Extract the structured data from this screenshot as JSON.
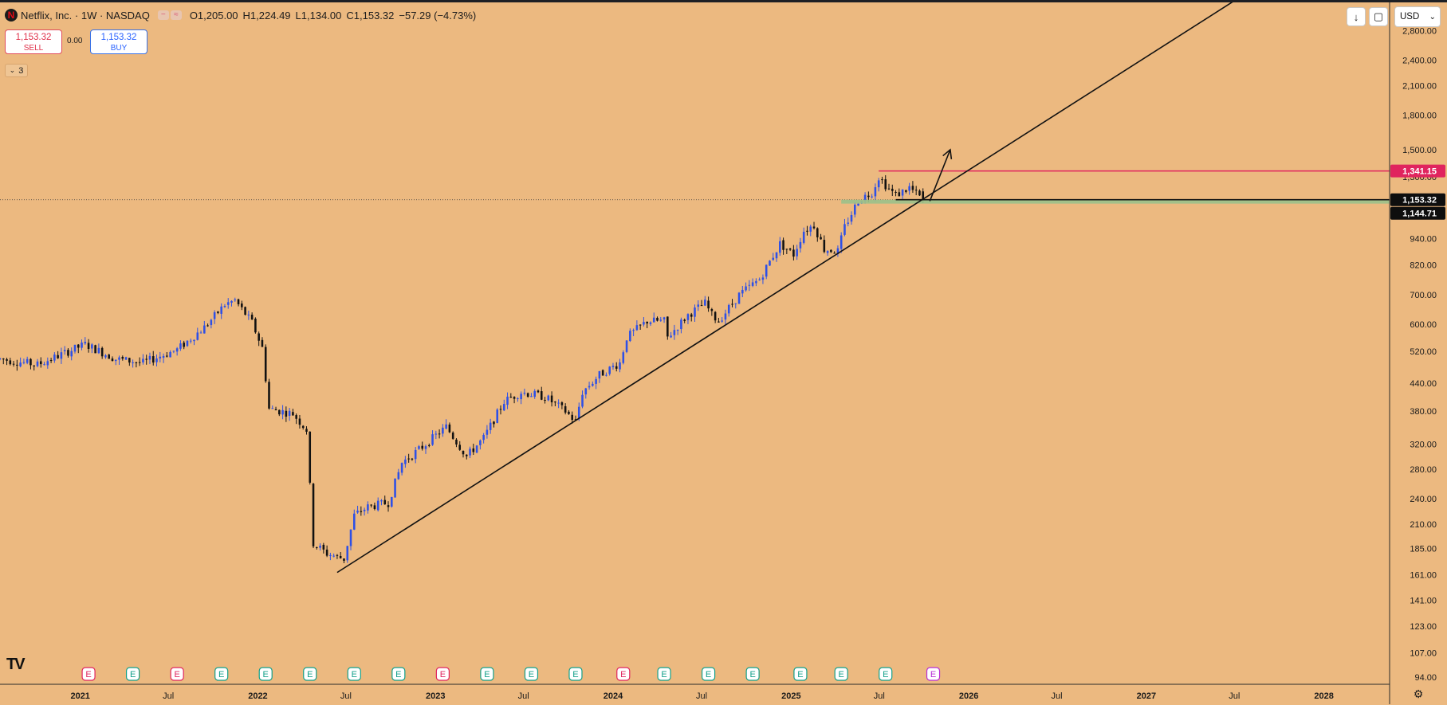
{
  "header": {
    "logo_letter": "N",
    "symbol": "Netflix, Inc. · 1W · NASDAQ",
    "badge_icons": [
      "−",
      "≈"
    ],
    "open": "O1,205.00",
    "high": "H1,224.49",
    "low": "L1,134.00",
    "close": "C1,153.32",
    "change": "−57.29 (−4.73%)"
  },
  "trade": {
    "sell_price": "1,153.32",
    "sell_label": "SELL",
    "spread": "0.00",
    "buy_price": "1,153.32",
    "buy_label": "BUY"
  },
  "indicators_toggle": {
    "icon": "chevron-down-icon",
    "count": "3"
  },
  "toolbar": {
    "download_icon": "↓",
    "screenshot_icon": "▢"
  },
  "currency": {
    "value": "USD"
  },
  "brand": {
    "logo_text": "TV"
  },
  "colors": {
    "background": "#ecb980",
    "bull": "#2e50e6",
    "bear": "#111111",
    "resistance": "#e0245e",
    "support": "#9bc18a",
    "earnings": "#13a08a",
    "earnings_miss": "#e0245e",
    "earnings_next": "#b72cd6"
  },
  "chart_data": {
    "type": "candlestick",
    "symbol": "Netflix, Inc.",
    "interval": "1W",
    "scale": "log",
    "ylim": [
      91,
      3250
    ],
    "xlim": [
      "2020-07-20",
      "2028-05-15"
    ],
    "y_ticks": [
      94,
      107,
      123,
      141,
      161,
      185,
      210,
      240,
      280,
      320,
      380,
      440,
      520,
      600,
      700,
      820,
      940,
      1300,
      1500,
      1800,
      2100,
      2400,
      2800
    ],
    "y_tick_labels": [
      "94.00",
      "107.00",
      "123.00",
      "141.00",
      "161.00",
      "185.00",
      "210.00",
      "240.00",
      "280.00",
      "320.00",
      "380.00",
      "440.00",
      "520.00",
      "600.00",
      "700.00",
      "820.00",
      "940.00",
      "1,300.00",
      "1,500.00",
      "1,800.00",
      "2,100.00",
      "2,400.00",
      "2,800.00"
    ],
    "x_ticks": [
      {
        "date": "2021-01-01",
        "label": "2021",
        "major": true
      },
      {
        "date": "2021-07-01",
        "label": "Jul",
        "major": false
      },
      {
        "date": "2022-01-01",
        "label": "2022",
        "major": true
      },
      {
        "date": "2022-07-01",
        "label": "Jul",
        "major": false
      },
      {
        "date": "2023-01-01",
        "label": "2023",
        "major": true
      },
      {
        "date": "2023-07-01",
        "label": "Jul",
        "major": false
      },
      {
        "date": "2024-01-01",
        "label": "2024",
        "major": true
      },
      {
        "date": "2024-07-01",
        "label": "Jul",
        "major": false
      },
      {
        "date": "2025-01-01",
        "label": "2025",
        "major": true
      },
      {
        "date": "2025-07-01",
        "label": "Jul",
        "major": false
      },
      {
        "date": "2026-01-01",
        "label": "2026",
        "major": true
      },
      {
        "date": "2026-07-01",
        "label": "Jul",
        "major": false
      },
      {
        "date": "2027-01-01",
        "label": "2027",
        "major": true
      },
      {
        "date": "2027-07-01",
        "label": "Jul",
        "major": false
      },
      {
        "date": "2028-01-01",
        "label": "2028",
        "major": true
      }
    ],
    "anchors": [
      [
        "2020-07-20",
        500
      ],
      [
        "2020-10-05",
        485
      ],
      [
        "2021-01-11",
        540
      ],
      [
        "2021-03-15",
        500
      ],
      [
        "2021-05-10",
        490
      ],
      [
        "2021-07-19",
        525
      ],
      [
        "2021-09-13",
        590
      ],
      [
        "2021-10-25",
        665
      ],
      [
        "2021-11-15",
        680
      ],
      [
        "2021-12-20",
        605
      ],
      [
        "2022-01-10",
        530
      ],
      [
        "2022-01-24",
        385
      ],
      [
        "2022-03-14",
        375
      ],
      [
        "2022-04-11",
        345
      ],
      [
        "2022-04-25",
        190
      ],
      [
        "2022-05-23",
        180
      ],
      [
        "2022-06-27",
        175
      ],
      [
        "2022-07-18",
        220
      ],
      [
        "2022-08-15",
        230
      ],
      [
        "2022-09-26",
        235
      ],
      [
        "2022-10-24",
        290
      ],
      [
        "2022-12-05",
        315
      ],
      [
        "2023-01-23",
        350
      ],
      [
        "2023-03-06",
        300
      ],
      [
        "2023-04-10",
        330
      ],
      [
        "2023-05-22",
        400
      ],
      [
        "2023-06-26",
        420
      ],
      [
        "2023-08-14",
        410
      ],
      [
        "2023-09-25",
        380
      ],
      [
        "2023-10-16",
        360
      ],
      [
        "2023-10-30",
        420
      ],
      [
        "2023-12-04",
        460
      ],
      [
        "2024-01-15",
        490
      ],
      [
        "2024-01-29",
        560
      ],
      [
        "2024-03-11",
        610
      ],
      [
        "2024-04-15",
        610
      ],
      [
        "2024-04-22",
        560
      ],
      [
        "2024-06-03",
        630
      ],
      [
        "2024-07-08",
        670
      ],
      [
        "2024-07-22",
        630
      ],
      [
        "2024-08-05",
        610
      ],
      [
        "2024-09-16",
        700
      ],
      [
        "2024-10-28",
        760
      ],
      [
        "2024-12-09",
        915
      ],
      [
        "2025-01-06",
        865
      ],
      [
        "2025-01-27",
        980
      ],
      [
        "2025-02-17",
        1010
      ],
      [
        "2025-03-10",
        890
      ],
      [
        "2025-04-07",
        880
      ],
      [
        "2025-04-21",
        1000
      ],
      [
        "2025-05-19",
        1150
      ],
      [
        "2025-06-16",
        1200
      ],
      [
        "2025-06-30",
        1300
      ],
      [
        "2025-07-21",
        1220
      ],
      [
        "2025-08-04",
        1180
      ],
      [
        "2025-09-01",
        1230
      ],
      [
        "2025-09-29",
        1153.32
      ]
    ],
    "last_bar": {
      "date": "2025-09-29",
      "open": 1205.0,
      "high": 1224.49,
      "low": 1134.0,
      "close": 1153.32,
      "change": -57.29,
      "change_pct": -4.73
    },
    "price_labels": [
      {
        "value": 1341.15,
        "label": "1,341.15",
        "role": "resistance"
      },
      {
        "value": 1153.32,
        "label": "1,153.32",
        "role": "last"
      },
      {
        "value": 1144.71,
        "label": "1,144.71",
        "role": "support"
      }
    ],
    "drawings": {
      "trendline": {
        "from": [
          "2022-06-13",
          163
        ],
        "to": [
          "2027-07-05",
          3300
        ]
      },
      "resistance_line": {
        "from_date": "2025-06-30",
        "value": 1341.15
      },
      "support_band": {
        "from_date": "2025-04-14",
        "top": 1153.32,
        "bottom": 1130
      },
      "last_price_line": {
        "from_date": "2025-08-04",
        "value": 1153.32
      },
      "arrow": {
        "from": [
          "2025-10-13",
          1145
        ],
        "to": [
          "2025-11-24",
          1500
        ]
      }
    },
    "earnings": [
      {
        "date": "2021-01-18",
        "label": "E",
        "kind": "miss"
      },
      {
        "date": "2021-04-19",
        "label": "E",
        "kind": "beat"
      },
      {
        "date": "2021-07-19",
        "label": "E",
        "kind": "miss"
      },
      {
        "date": "2021-10-18",
        "label": "E",
        "kind": "beat"
      },
      {
        "date": "2022-01-17",
        "label": "E",
        "kind": "beat"
      },
      {
        "date": "2022-04-18",
        "label": "E",
        "kind": "beat"
      },
      {
        "date": "2022-07-18",
        "label": "E",
        "kind": "beat"
      },
      {
        "date": "2022-10-17",
        "label": "E",
        "kind": "beat"
      },
      {
        "date": "2023-01-16",
        "label": "E",
        "kind": "miss"
      },
      {
        "date": "2023-04-17",
        "label": "E",
        "kind": "beat"
      },
      {
        "date": "2023-07-17",
        "label": "E",
        "kind": "beat"
      },
      {
        "date": "2023-10-16",
        "label": "E",
        "kind": "beat"
      },
      {
        "date": "2024-01-22",
        "label": "E",
        "kind": "miss"
      },
      {
        "date": "2024-04-15",
        "label": "E",
        "kind": "beat"
      },
      {
        "date": "2024-07-15",
        "label": "E",
        "kind": "beat"
      },
      {
        "date": "2024-10-14",
        "label": "E",
        "kind": "beat"
      },
      {
        "date": "2025-01-20",
        "label": "E",
        "kind": "beat"
      },
      {
        "date": "2025-04-14",
        "label": "E",
        "kind": "beat"
      },
      {
        "date": "2025-07-14",
        "label": "E",
        "kind": "beat"
      },
      {
        "date": "2025-10-20",
        "label": "E",
        "kind": "next"
      }
    ]
  }
}
